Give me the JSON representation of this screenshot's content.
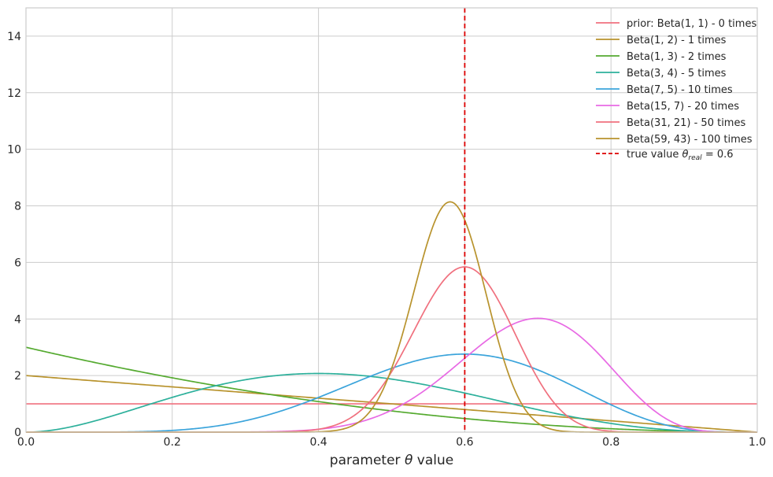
{
  "chart_data": {
    "type": "line",
    "xlabel_parts": [
      "parameter ",
      "θ",
      " value"
    ],
    "xlim": [
      0,
      1
    ],
    "ylim": [
      0,
      15
    ],
    "xticks": [
      0,
      0.2,
      0.4,
      0.6,
      0.8,
      1.0
    ],
    "xtick_labels": [
      "0.0",
      "0.2",
      "0.4",
      "0.6",
      "0.8",
      "1.0"
    ],
    "yticks": [
      0,
      2,
      4,
      6,
      8,
      10,
      12,
      14
    ],
    "ytick_labels": [
      "0",
      "2",
      "4",
      "6",
      "8",
      "10",
      "12",
      "14"
    ],
    "grid": true,
    "legend_position": "top-right",
    "series": [
      {
        "name": "prior: Beta(1, 1) - 0 times",
        "alpha": 1,
        "beta": 1,
        "color": "#f0707e"
      },
      {
        "name": "Beta(1, 2) - 1 times",
        "alpha": 1,
        "beta": 2,
        "color": "#b8932d"
      },
      {
        "name": "Beta(1, 3) - 2 times",
        "alpha": 1,
        "beta": 3,
        "color": "#55aa30"
      },
      {
        "name": "Beta(3, 4) - 5 times",
        "alpha": 3,
        "beta": 4,
        "color": "#2db09b"
      },
      {
        "name": "Beta(7, 5) - 10 times",
        "alpha": 7,
        "beta": 5,
        "color": "#3ba4db"
      },
      {
        "name": "Beta(15, 7) - 20 times",
        "alpha": 15,
        "beta": 7,
        "color": "#e86ae4"
      },
      {
        "name": "Beta(31, 21) - 50 times",
        "alpha": 31,
        "beta": 21,
        "color": "#f0707e"
      },
      {
        "name": "Beta(59, 43) - 100 times",
        "alpha": 59,
        "beta": 43,
        "color": "#b8932d"
      }
    ],
    "reference_line": {
      "x": 0.6,
      "color": "#dd0000",
      "style": "dashed",
      "label_parts": [
        "true value ",
        "θ",
        "real",
        " = 0.6"
      ]
    }
  }
}
